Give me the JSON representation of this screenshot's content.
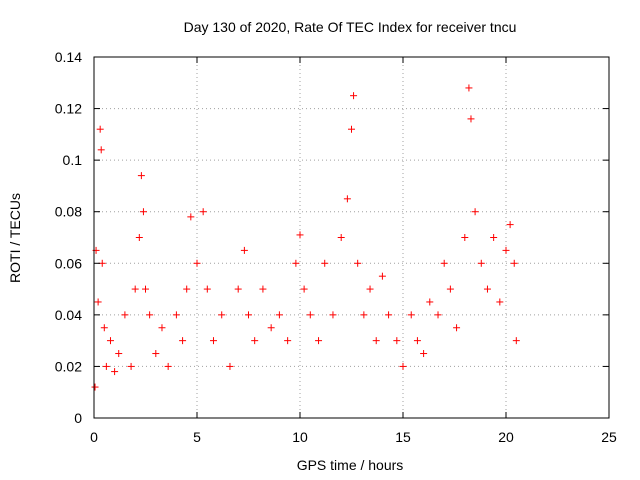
{
  "chart_data": {
    "type": "scatter",
    "title": "Day 130 of 2020, Rate Of TEC Index for receiver tncu",
    "xlabel": "GPS time / hours",
    "ylabel": "ROTI / TECUs",
    "xlim": [
      0,
      25
    ],
    "ylim": [
      0,
      0.14
    ],
    "x_ticks": [
      0,
      5,
      10,
      15,
      20,
      25
    ],
    "x_tick_labels": [
      "0",
      "5",
      "10",
      "15",
      "20",
      "25"
    ],
    "y_ticks": [
      0,
      0.02,
      0.04,
      0.06,
      0.08,
      0.1,
      0.12,
      0.14
    ],
    "y_tick_labels": [
      "0",
      "0.02",
      "0.04",
      "0.06",
      "0.08",
      "0.1",
      "0.12",
      "0.14"
    ],
    "grid": true,
    "marker": "plus",
    "color": "#ff0000",
    "series": [
      {
        "name": "",
        "x": [
          0.05,
          0.1,
          0.2,
          0.3,
          0.35,
          0.4,
          0.5,
          0.6,
          0.8,
          1.0,
          1.2,
          1.5,
          1.8,
          2.0,
          2.2,
          2.3,
          2.4,
          2.5,
          2.7,
          3.0,
          3.3,
          3.6,
          4.0,
          4.3,
          4.5,
          4.7,
          5.0,
          5.3,
          5.5,
          5.8,
          6.2,
          6.6,
          7.0,
          7.3,
          7.5,
          7.8,
          8.2,
          8.6,
          9.0,
          9.4,
          9.8,
          10.0,
          10.2,
          10.5,
          10.9,
          11.2,
          11.6,
          12.0,
          12.3,
          12.5,
          12.6,
          12.8,
          13.1,
          13.4,
          13.7,
          14.0,
          14.3,
          14.7,
          15.0,
          15.4,
          15.7,
          16.0,
          16.3,
          16.7,
          17.0,
          17.3,
          17.6,
          18.0,
          18.2,
          18.3,
          18.5,
          18.8,
          19.1,
          19.4,
          19.7,
          20.0,
          20.2,
          20.4,
          20.5
        ],
        "y": [
          0.012,
          0.065,
          0.045,
          0.112,
          0.104,
          0.06,
          0.035,
          0.02,
          0.03,
          0.018,
          0.025,
          0.04,
          0.02,
          0.05,
          0.07,
          0.094,
          0.08,
          0.05,
          0.04,
          0.025,
          0.035,
          0.02,
          0.04,
          0.03,
          0.05,
          0.078,
          0.06,
          0.08,
          0.05,
          0.03,
          0.04,
          0.02,
          0.05,
          0.065,
          0.04,
          0.03,
          0.05,
          0.035,
          0.04,
          0.03,
          0.06,
          0.071,
          0.05,
          0.04,
          0.03,
          0.06,
          0.04,
          0.07,
          0.085,
          0.112,
          0.125,
          0.06,
          0.04,
          0.05,
          0.03,
          0.055,
          0.04,
          0.03,
          0.02,
          0.04,
          0.03,
          0.025,
          0.045,
          0.04,
          0.06,
          0.05,
          0.035,
          0.07,
          0.128,
          0.116,
          0.08,
          0.06,
          0.05,
          0.07,
          0.045,
          0.065,
          0.075,
          0.06,
          0.03
        ]
      }
    ]
  }
}
